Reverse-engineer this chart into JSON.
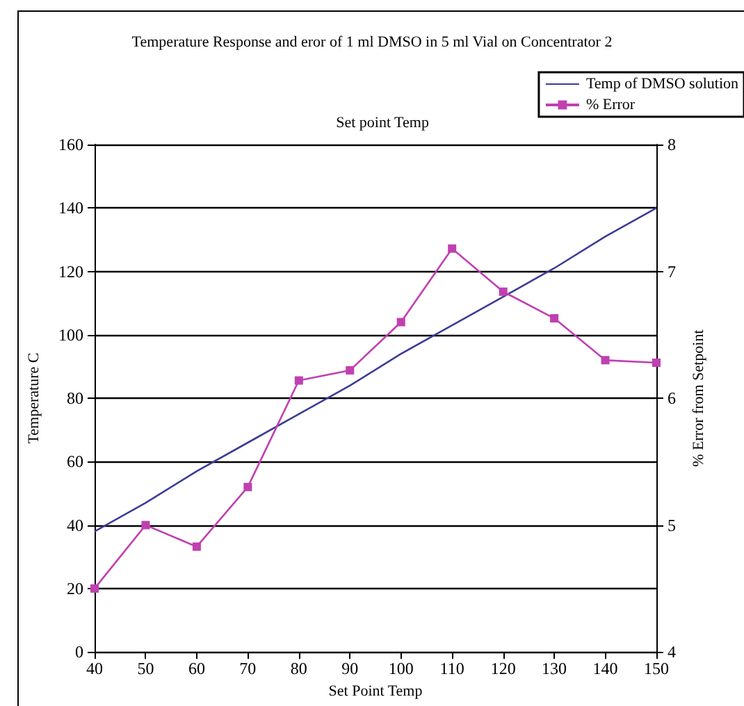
{
  "chart_data": {
    "type": "line",
    "title": "Temperature Response and eror of 1 ml DMSO in 5 ml Vial on Concentrator 2",
    "subtitle": "Set point Temp",
    "xlabel": "Set Point Temp",
    "ylabel": "Temperature C",
    "y2label": "% Error from Setpoint",
    "x": [
      40,
      50,
      60,
      70,
      80,
      90,
      100,
      110,
      120,
      130,
      140,
      150
    ],
    "series": [
      {
        "name": "Temp of DMSO solution",
        "color": "#3c3c96",
        "marker": "none",
        "values": [
          38,
          47,
          57,
          66,
          75,
          84,
          94,
          103,
          112,
          121,
          131,
          140
        ]
      },
      {
        "name": "% Error",
        "color": "#c040b0",
        "marker": "square",
        "axis": "y2",
        "values": [
          4.5,
          5.0,
          4.83,
          5.3,
          6.14,
          6.22,
          6.6,
          7.18,
          6.84,
          6.63,
          6.3,
          6.28
        ]
      }
    ],
    "xlim": [
      40,
      150
    ],
    "xticks": [
      40,
      50,
      60,
      70,
      80,
      90,
      100,
      110,
      120,
      130,
      140,
      150
    ],
    "ylim": [
      0,
      160
    ],
    "yticks": [
      0,
      20,
      40,
      60,
      80,
      100,
      120,
      140,
      160
    ],
    "y2lim": [
      4,
      8
    ],
    "y2ticks": [
      4,
      5,
      6,
      7,
      8
    ],
    "grid": "y",
    "legend": "top right"
  }
}
